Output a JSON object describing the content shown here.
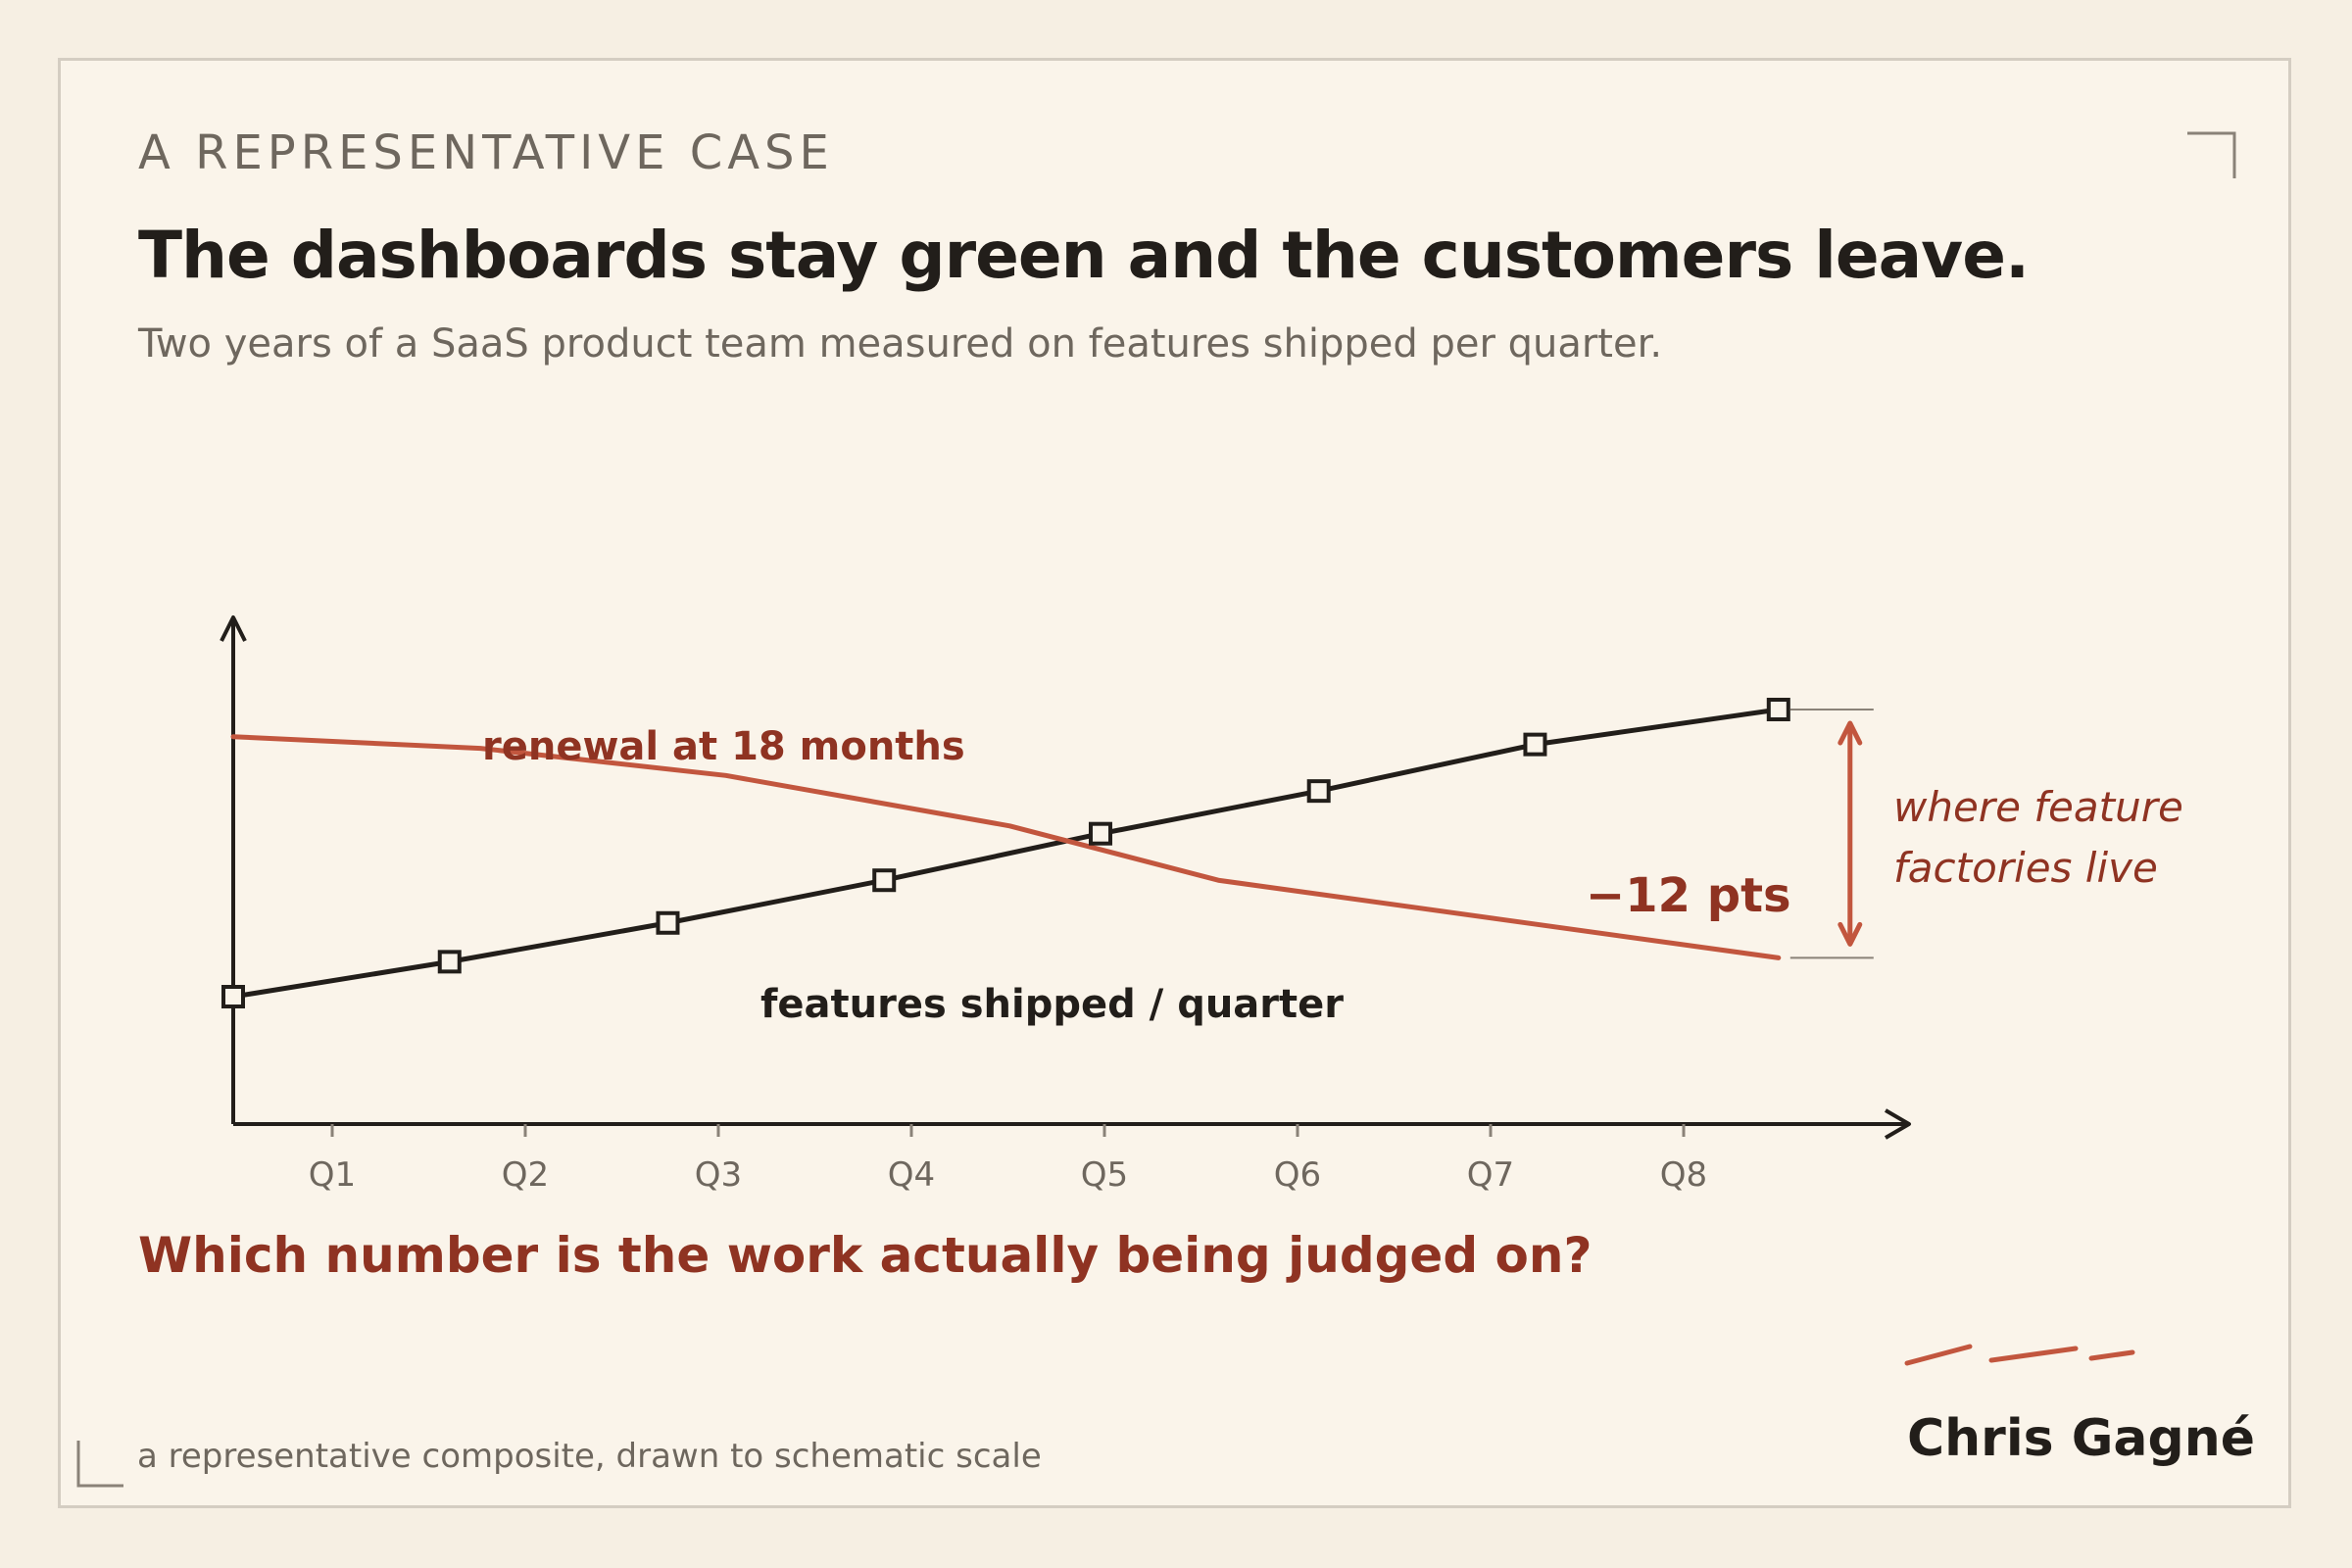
{
  "page": {
    "eyebrow": "A REPRESENTATIVE CASE",
    "title": "The dashboards stay green and the customers leave.",
    "subtitle": "Two years of a SaaS product team measured on features shipped per quarter.",
    "question": "Which number is the work actually being judged on?",
    "footnote": "a representative composite, drawn to schematic scale",
    "author": "Chris Gagné"
  },
  "colors": {
    "background": "#f6efe3",
    "card": "#faf4ea",
    "ink": "#221e1a",
    "muted": "#6e675e",
    "accent_red": "#c2563e",
    "accent_red_text": "#8f3322",
    "frame": "#d4cdc2"
  },
  "chart_data": {
    "type": "line",
    "title": "",
    "xlabel": "",
    "ylabel": "",
    "categories": [
      "Q1",
      "Q2",
      "Q3",
      "Q4",
      "Q5",
      "Q6",
      "Q7",
      "Q8"
    ],
    "ylim": [
      0,
      100
    ],
    "grid": false,
    "legend": "none",
    "series": [
      {
        "name": "features shipped / quarter",
        "color": "#221e1a",
        "markers": "square",
        "x": [
          0.5,
          1.62,
          2.75,
          3.87,
          4.99,
          6.12,
          7.24,
          8.5
        ],
        "values": [
          23,
          32,
          42,
          53,
          65,
          76,
          88,
          97
        ]
      },
      {
        "name": "renewal at 18 months",
        "color": "#c2563e",
        "markers": "none",
        "x": [
          0.5,
          1.78,
          3.05,
          4.52,
          5.6,
          7.05,
          8.5
        ],
        "values": [
          90,
          87,
          80,
          67,
          53,
          43,
          33
        ]
      }
    ],
    "annotations": [
      {
        "label": "−12 pts",
        "from": 97,
        "to": 33,
        "at_x": 8.5
      },
      {
        "label_lines": [
          "where feature",
          "factories live"
        ]
      }
    ]
  }
}
